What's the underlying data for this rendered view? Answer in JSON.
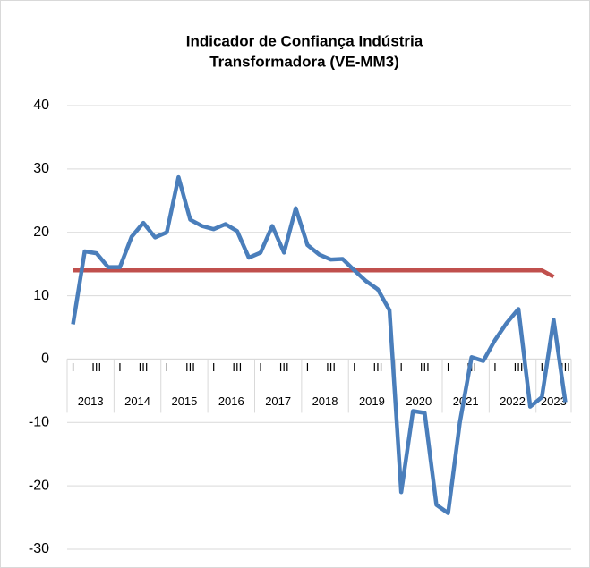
{
  "chart_data": {
    "type": "line",
    "title": [
      "Indicador de Confiança Indústria",
      "Transformadora (VE-MM3)"
    ],
    "categories": [
      "I",
      null,
      "III",
      null,
      "I",
      null,
      "III",
      null,
      "I",
      null,
      "III",
      null,
      "I",
      null,
      "III",
      null,
      "I",
      null,
      "III",
      null,
      "I",
      null,
      "III",
      null,
      "I",
      null,
      "III",
      null,
      "I",
      null,
      "III",
      null,
      "I",
      null,
      "III",
      null,
      "I",
      null,
      "III",
      null,
      "I",
      null,
      "III"
    ],
    "years": [
      "2013",
      "2014",
      "2015",
      "2016",
      "2017",
      "2018",
      "2019",
      "2020",
      "2021",
      "2022",
      "2023"
    ],
    "series": [
      {
        "color": "#4a7ebb",
        "values": [
          5.5,
          17,
          16.7,
          14.5,
          14.5,
          19.3,
          21.5,
          19.2,
          20,
          28.7,
          22,
          21,
          20.5,
          21.3,
          20.2,
          16,
          16.8,
          21,
          16.8,
          23.8,
          18,
          16.5,
          15.7,
          15.8,
          14,
          12.3,
          11,
          7.7,
          -21,
          -8.2,
          -8.5,
          -23,
          -24.3,
          -10,
          0.3,
          -0.3,
          3,
          5.7,
          7.9,
          -7.5,
          -6,
          6.2,
          -6.8
        ]
      },
      {
        "color": "#c0504d",
        "values": [
          14,
          14,
          14,
          14,
          14,
          14,
          14,
          14,
          14,
          14,
          14,
          14,
          14,
          14,
          14,
          14,
          14,
          14,
          14,
          14,
          14,
          14,
          14,
          14,
          14,
          14,
          14,
          14,
          14,
          14,
          14,
          14,
          14,
          14,
          14,
          14,
          14,
          14,
          14,
          14,
          14,
          13,
          null
        ]
      }
    ],
    "ylim": [
      -30,
      40
    ],
    "yticks": [
      -30,
      -20,
      -10,
      0,
      10,
      20,
      30,
      40
    ],
    "grid": true
  }
}
